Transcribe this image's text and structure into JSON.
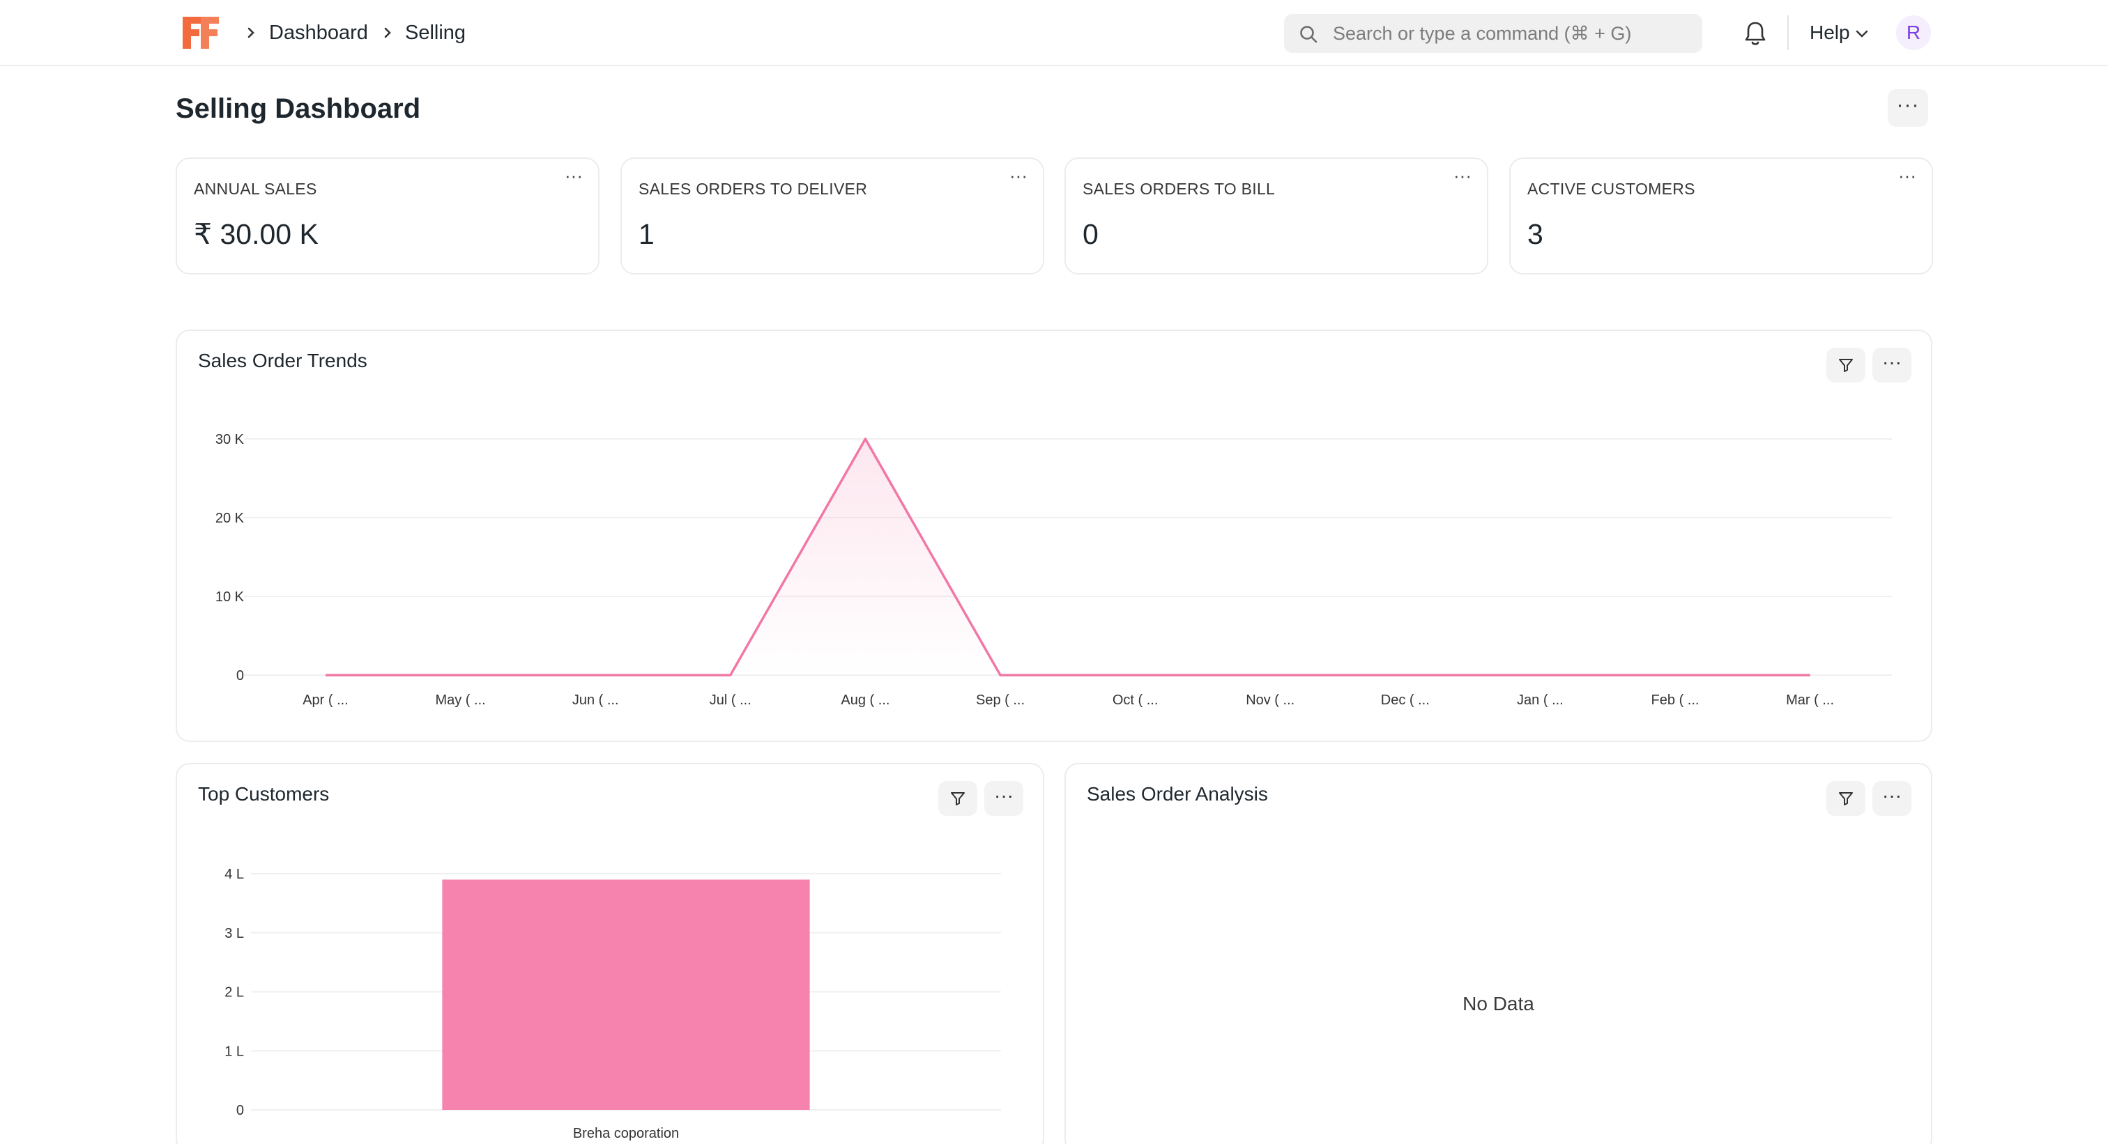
{
  "navbar": {
    "breadcrumbs": [
      "Dashboard",
      "Selling"
    ],
    "search_placeholder": "Search or type a command (⌘ + G)",
    "help_label": "Help",
    "avatar_initial": "R"
  },
  "page": {
    "title": "Selling Dashboard"
  },
  "number_cards": [
    {
      "label": "ANNUAL SALES",
      "value": "₹ 30.00 K"
    },
    {
      "label": "SALES ORDERS TO DELIVER",
      "value": "1"
    },
    {
      "label": "SALES ORDERS TO BILL",
      "value": "0"
    },
    {
      "label": "ACTIVE CUSTOMERS",
      "value": "3"
    }
  ],
  "charts": {
    "sales_order_trends": {
      "title": "Sales Order Trends"
    },
    "top_customers": {
      "title": "Top Customers"
    },
    "sales_order_analysis": {
      "title": "Sales Order Analysis",
      "empty_text": "No Data"
    }
  },
  "colors": {
    "accent": "#f683ae",
    "line": "#f178a6",
    "brand": "#f26a3d",
    "avatar_text": "#7b3fe4"
  },
  "icons": {
    "filter": "filter-icon",
    "more": "more-icon",
    "search": "search-icon",
    "bell": "bell-icon"
  },
  "chart_data": [
    {
      "type": "line",
      "title": "Sales Order Trends",
      "categories": [
        "Apr ( ...",
        "May ( ...",
        "Jun ( ...",
        "Jul ( ...",
        "Aug ( ...",
        "Sep ( ...",
        "Oct ( ...",
        "Nov ( ...",
        "Dec ( ...",
        "Jan ( ...",
        "Feb ( ...",
        "Mar ( ..."
      ],
      "values": [
        0,
        0,
        0,
        0,
        30000,
        0,
        0,
        0,
        0,
        0,
        0,
        0
      ],
      "yticks": [
        {
          "v": 0,
          "label": "0"
        },
        {
          "v": 10000,
          "label": "10 K"
        },
        {
          "v": 20000,
          "label": "20 K"
        },
        {
          "v": 30000,
          "label": "30 K"
        }
      ],
      "ylim": [
        0,
        30000
      ],
      "grid": true,
      "area_fill": true,
      "color": "#f178a6"
    },
    {
      "type": "bar",
      "title": "Top Customers",
      "categories": [
        "Breha coporation"
      ],
      "values": [
        390000
      ],
      "yticks": [
        {
          "v": 0,
          "label": "0"
        },
        {
          "v": 100000,
          "label": "1 L"
        },
        {
          "v": 200000,
          "label": "2 L"
        },
        {
          "v": 300000,
          "label": "3 L"
        },
        {
          "v": 400000,
          "label": "4 L"
        }
      ],
      "ylim": [
        0,
        400000
      ],
      "grid": true,
      "color": "#f683ae"
    }
  ]
}
